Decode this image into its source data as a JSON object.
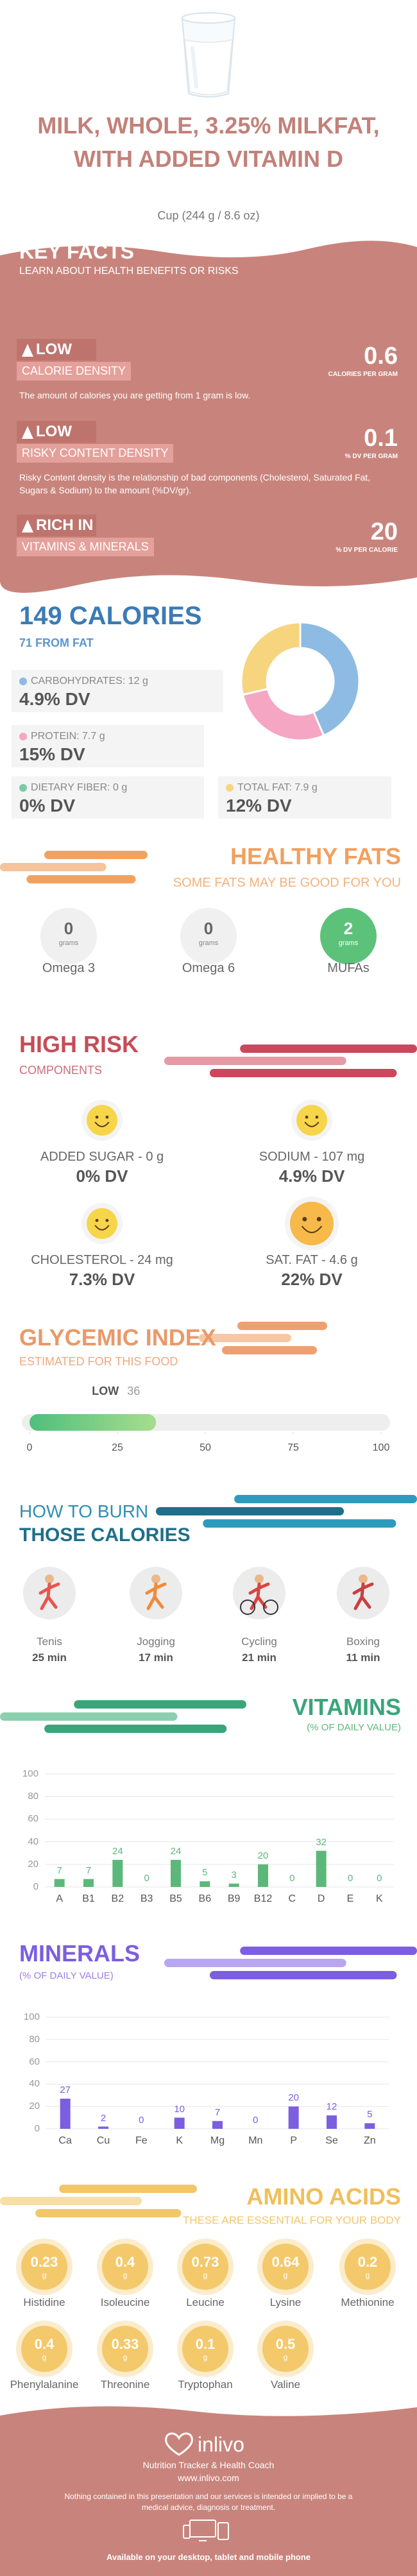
{
  "header": {
    "title": "MILK, WHOLE, 3.25% MILKFAT, WITH ADDED VITAMIN D",
    "serving": "Cup (244 g / 8.6 oz)"
  },
  "key_facts": {
    "title": "KEY FACTS",
    "subtitle": "LEARN ABOUT HEALTH BENEFITS OR RISKS",
    "facts": [
      {
        "level": "LOW",
        "name": "CALORIE DENSITY",
        "value": 0.6,
        "unit": "CALORIES PER GRAM",
        "description": "The amount of calories you are getting from 1 gram is low."
      },
      {
        "level": "LOW",
        "name": "RISKY CONTENT DENSITY",
        "value": 0.1,
        "unit": "% DV PER GRAM",
        "description": "Risky Content density is the relationship of bad components (Cholesterol, Saturated Fat, Sugars & Sodium) to the amount (%DV/gr)."
      },
      {
        "level": "RICH IN",
        "name": "VITAMINS & MINERALS",
        "value": 20,
        "unit": "% DV PER CALORIE"
      }
    ]
  },
  "calories": {
    "title": "149 CALORIES",
    "subtitle": "71 FROM FAT",
    "nutrients": [
      {
        "label": "CARBOHYDRATES: 12 g",
        "grams": 12,
        "dv": "4.9% DV",
        "color": "#8dbbe3"
      },
      {
        "label": "PROTEIN: 7.7 g",
        "grams": 7.7,
        "dv": "15% DV",
        "color": "#f4a6c3"
      },
      {
        "label": "DIETARY FIBER: 0 g",
        "grams": 0,
        "dv": "0% DV",
        "color": "#7cc9a6"
      },
      {
        "label": "TOTAL FAT: 7.9 g",
        "grams": 7.9,
        "dv": "12% DV",
        "color": "#f7d47e"
      }
    ]
  },
  "healthy_fats": {
    "title": "HEALTHY FATS",
    "subtitle": "SOME FATS MAY BE GOOD FOR YOU",
    "unit": "grams",
    "items": [
      {
        "name": "Omega 3",
        "value": 0
      },
      {
        "name": "Omega 6",
        "value": 0
      },
      {
        "name": "MUFAs",
        "value": 2
      }
    ]
  },
  "high_risk": {
    "title": "HIGH RISK",
    "subtitle": "COMPONENTS",
    "items": [
      {
        "name": "ADDED SUGAR - 0 g",
        "dv": "0% DV"
      },
      {
        "name": "SODIUM - 107 mg",
        "dv": "4.9% DV"
      },
      {
        "name": "CHOLESTEROL - 24 mg",
        "dv": "7.3% DV"
      },
      {
        "name": "SAT. FAT - 4.6 g",
        "dv": "22% DV"
      }
    ]
  },
  "glycemic_index": {
    "title": "GLYCEMIC INDEX",
    "subtitle": "ESTIMATED FOR THIS FOOD",
    "level": "LOW",
    "value": 36,
    "xlim": [
      0,
      100
    ],
    "xticks": [
      0,
      25,
      50,
      75,
      100
    ]
  },
  "burn": {
    "title": "HOW TO BURN",
    "subtitle": "THOSE CALORIES",
    "activities": [
      {
        "name": "Tenis",
        "time": "25 min"
      },
      {
        "name": "Jogging",
        "time": "17 min"
      },
      {
        "name": "Cycling",
        "time": "21 min"
      },
      {
        "name": "Boxing",
        "time": "11 min"
      }
    ]
  },
  "vitamins": {
    "type": "bar",
    "title": "VITAMINS",
    "subtitle": "(% OF DAILY VALUE)",
    "color": "#5cb87a",
    "categories": [
      "A",
      "B1",
      "B2",
      "B3",
      "B5",
      "B6",
      "B9",
      "B12",
      "C",
      "D",
      "E",
      "K"
    ],
    "values": [
      7,
      7,
      24,
      0,
      24,
      5,
      3,
      20,
      0,
      32,
      0,
      0
    ],
    "ylim": [
      0,
      100
    ],
    "yticks": [
      0,
      20,
      40,
      60,
      80,
      100
    ]
  },
  "minerals": {
    "type": "bar",
    "title": "MINERALS",
    "subtitle": "(% OF DAILY VALUE)",
    "color": "#7c5ee0",
    "categories": [
      "Ca",
      "Cu",
      "Fe",
      "K",
      "Mg",
      "Mn",
      "P",
      "Se",
      "Zn"
    ],
    "values": [
      27,
      2,
      0,
      10,
      7,
      0,
      20,
      12,
      5
    ],
    "ylim": [
      0,
      100
    ],
    "yticks": [
      0,
      20,
      40,
      60,
      80,
      100
    ]
  },
  "amino_acids": {
    "title": "AMINO ACIDS",
    "subtitle": "THESE ARE ESSENTIAL FOR YOUR BODY",
    "unit": "g",
    "items": [
      {
        "name": "Histidine",
        "value": 0.23
      },
      {
        "name": "Isoleucine",
        "value": 0.4
      },
      {
        "name": "Leucine",
        "value": 0.73
      },
      {
        "name": "Lysine",
        "value": 0.64
      },
      {
        "name": "Methionine",
        "value": 0.2
      },
      {
        "name": "Phenylalanine",
        "value": 0.4
      },
      {
        "name": "Threonine",
        "value": 0.33
      },
      {
        "name": "Tryptophan",
        "value": 0.1
      },
      {
        "name": "Valine",
        "value": 0.5
      }
    ]
  },
  "footer": {
    "brand": "inlivo",
    "tagline": "Nutrition Tracker & Health Coach",
    "url": "www.inlivo.com",
    "disclaimer": "Nothing contained in this presentation and our services is intended or implied to be a medical advice, diagnosis or treatment.",
    "availability": "Available on your desktop, tablet and mobile phone"
  }
}
